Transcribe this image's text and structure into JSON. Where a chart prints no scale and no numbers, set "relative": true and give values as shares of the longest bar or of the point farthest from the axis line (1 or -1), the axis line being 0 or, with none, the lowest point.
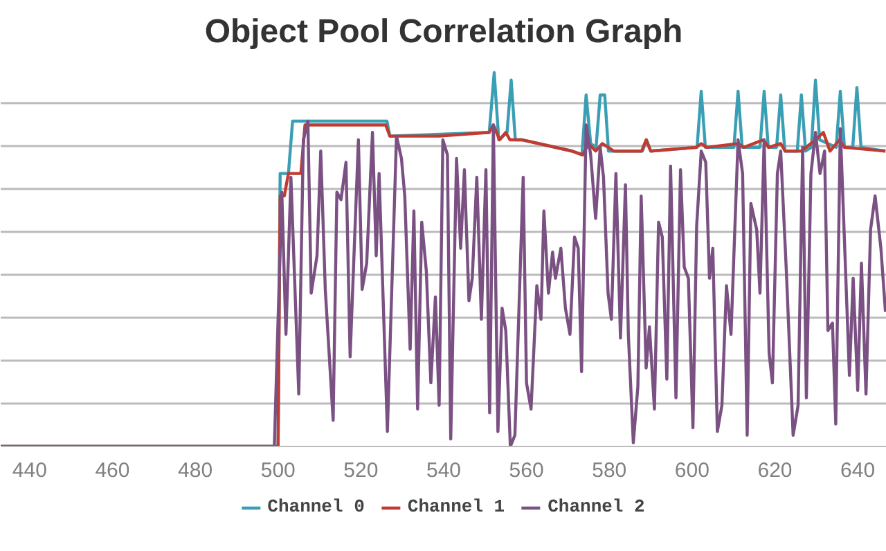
{
  "chart_data": {
    "type": "line",
    "title": "Object Pool Correlation Graph",
    "relative": true,
    "xlim": [
      433,
      647
    ],
    "xticks": [
      440,
      460,
      480,
      500,
      520,
      540,
      560,
      580,
      600,
      620,
      640
    ],
    "grid": "y",
    "legend": "bottom",
    "line_style": "solid",
    "marker": "none",
    "series": [
      {
        "name": "Channel 0",
        "color": "#3a9fb4",
        "x": [
          433,
          500,
          500.5,
          502.5,
          503.5,
          526.3,
          527,
          551,
          552.2,
          553.3,
          555.3,
          556.3,
          557.3,
          559,
          571,
          573.4,
          574.4,
          575.5,
          576.8,
          577.8,
          578.9,
          579.8,
          588,
          589,
          590,
          601.2,
          602.2,
          603.2,
          610.1,
          611.1,
          612.1,
          616.4,
          617.4,
          618.4,
          620.4,
          621.4,
          622.4,
          625.4,
          626.4,
          627.4,
          628.8,
          629.8,
          630.8,
          634.8,
          635.8,
          636.8,
          638.8,
          639.8,
          640.8,
          646.7
        ],
        "values": [
          0,
          0,
          0.73,
          0.73,
          0.87,
          0.87,
          0.83,
          0.84,
          1,
          0.82,
          0.84,
          0.98,
          0.82,
          0.82,
          0.79,
          0.78,
          0.94,
          0.81,
          0.8,
          0.94,
          0.94,
          0.79,
          0.79,
          0.82,
          0.79,
          0.8,
          0.95,
          0.8,
          0.8,
          0.95,
          0.8,
          0.8,
          0.95,
          0.8,
          0.8,
          0.94,
          0.79,
          0.79,
          0.94,
          0.79,
          0.8,
          0.98,
          0.82,
          0.8,
          0.95,
          0.8,
          0.8,
          0.96,
          0.8,
          0.79
        ]
      },
      {
        "name": "Channel 1",
        "color": "#c23b30",
        "x": [
          433,
          500,
          500.5,
          501.5,
          502.5,
          505.5,
          506.5,
          526,
          527,
          539,
          551,
          552,
          553.5,
          555,
          556,
          559,
          571,
          573.6,
          575,
          576.7,
          578.3,
          581.1,
          587.8,
          588.9,
          590,
          601,
          602.2,
          603.5,
          611.1,
          612.5,
          617.2,
          618.5,
          621.4,
          622.5,
          626.4,
          629.8,
          631.7,
          633.3,
          635.6,
          636.8,
          646.7
        ],
        "values": [
          0,
          0,
          0.67,
          0.67,
          0.73,
          0.73,
          0.86,
          0.86,
          0.83,
          0.83,
          0.84,
          0.86,
          0.82,
          0.84,
          0.82,
          0.82,
          0.79,
          0.78,
          0.81,
          0.79,
          0.81,
          0.79,
          0.79,
          0.82,
          0.79,
          0.8,
          0.81,
          0.8,
          0.81,
          0.8,
          0.82,
          0.8,
          0.81,
          0.79,
          0.79,
          0.82,
          0.84,
          0.79,
          0.82,
          0.8,
          0.79
        ]
      },
      {
        "name": "Channel 2",
        "color": "#7a5182",
        "x": [
          433,
          499.1,
          500.9,
          501.9,
          503.1,
          505,
          506.1,
          507.2,
          508,
          509.4,
          510.3,
          511.4,
          513.3,
          514.2,
          515.2,
          516.4,
          517.4,
          519.4,
          520.3,
          521.4,
          522.8,
          523.7,
          524.4,
          526.4,
          528.6,
          529.8,
          530.6,
          531.9,
          532.8,
          533.7,
          534.7,
          535.8,
          536.9,
          538,
          538.9,
          539.8,
          540.9,
          541.7,
          543.1,
          544.1,
          545,
          546.1,
          546.9,
          548,
          549.1,
          550.2,
          551.1,
          552,
          553.1,
          554.1,
          555,
          556.1,
          557.2,
          559.2,
          560,
          561.1,
          562.5,
          563.5,
          564.2,
          565.3,
          566.3,
          567,
          568.3,
          569.4,
          570.5,
          571.6,
          572.5,
          573.3,
          574.4,
          575.5,
          576.7,
          577.8,
          578.6,
          579.7,
          580.5,
          581.6,
          582.7,
          583.9,
          584.6,
          585.8,
          586.9,
          587.7,
          588.9,
          589.7,
          590.9,
          591.9,
          592.8,
          593.9,
          594.8,
          596.1,
          597.2,
          598.1,
          599.1,
          600.2,
          601.1,
          602.2,
          603.3,
          604.2,
          605,
          606.1,
          607.2,
          608.3,
          609.4,
          611.1,
          612.2,
          613.3,
          614.2,
          615.6,
          616.4,
          617.4,
          618.6,
          619.4,
          620.6,
          621.4,
          622.8,
          624.4,
          625.6,
          626.7,
          627.6,
          628.7,
          629.8,
          630.9,
          632,
          632.8,
          633.9,
          634.7,
          635.8,
          636.9,
          638,
          638.9,
          640,
          640.9,
          642,
          643.1,
          644.2,
          645.6,
          646.7
        ],
        "values": [
          0,
          0,
          0.68,
          0.3,
          0.72,
          0.14,
          0.82,
          0.87,
          0.41,
          0.51,
          0.79,
          0.42,
          0.07,
          0.68,
          0.66,
          0.76,
          0.24,
          0.82,
          0.42,
          0.49,
          0.84,
          0.51,
          0.73,
          0.04,
          0.83,
          0.77,
          0.67,
          0.26,
          0.63,
          0.1,
          0.6,
          0.47,
          0.17,
          0.4,
          0.11,
          0.82,
          0.78,
          0.02,
          0.77,
          0.53,
          0.74,
          0.39,
          0.45,
          0.72,
          0.34,
          0.74,
          0.09,
          0.86,
          0.04,
          0.37,
          0.31,
          0,
          0.03,
          0.72,
          0.17,
          0.1,
          0.43,
          0.34,
          0.63,
          0.41,
          0.52,
          0.45,
          0.53,
          0.37,
          0.3,
          0.56,
          0.53,
          0.2,
          0.86,
          0.78,
          0.61,
          0.8,
          0.72,
          0.41,
          0.34,
          0.73,
          0.29,
          0.7,
          0.3,
          0.01,
          0.16,
          0.67,
          0.21,
          0.32,
          0.1,
          0.6,
          0.56,
          0.18,
          0.75,
          0.13,
          0.74,
          0.48,
          0.45,
          0.05,
          0.59,
          0.79,
          0.76,
          0.45,
          0.53,
          0.04,
          0.11,
          0.43,
          0.3,
          0.82,
          0.73,
          0.03,
          0.65,
          0.58,
          0.41,
          0.82,
          0.25,
          0.17,
          0.73,
          0.79,
          0.46,
          0.03,
          0.11,
          0.8,
          0.13,
          0.73,
          0.84,
          0.73,
          0.79,
          0.31,
          0.33,
          0.06,
          0.85,
          0.52,
          0.19,
          0.45,
          0.15,
          0.49,
          0.14,
          0.58,
          0.67,
          0.53,
          0.36
        ]
      }
    ]
  }
}
